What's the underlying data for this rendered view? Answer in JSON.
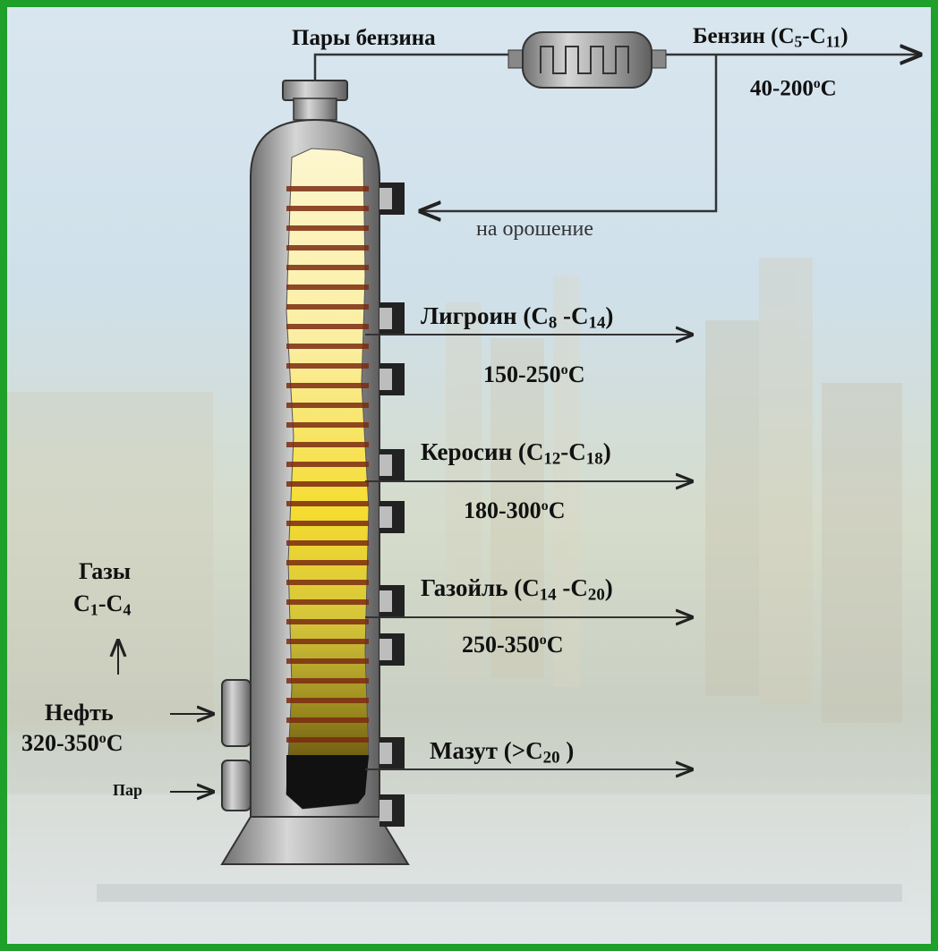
{
  "labels": {
    "vapors": "Пары бензина",
    "reflux": "на орошение",
    "gases_title": "Газы",
    "steam": "Пар"
  },
  "outputs": [
    {
      "name": "Бензин",
      "formula_open": "(C",
      "c_from": "5",
      "sep": "-C",
      "c_to": "11",
      "close": ")",
      "t_from": "40-200",
      "t_unit": "C"
    },
    {
      "name": "Лигроин",
      "formula_open": "(C",
      "c_from": "8",
      "sep": " -C",
      "c_to": "14",
      "close": ")",
      "t_from": "150-250",
      "t_unit": "C"
    },
    {
      "name": "Керосин",
      "formula_open": "(C",
      "c_from": "12",
      "sep": "-C",
      "c_to": "18",
      "close": ")",
      "t_from": "180-300",
      "t_unit": "C"
    },
    {
      "name": "Газойль",
      "formula_open": "(C",
      "c_from": "14",
      "sep": " -C",
      "c_to": "20",
      "close": ")",
      "t_from": "250-350",
      "t_unit": "C"
    },
    {
      "name": "Мазут",
      "formula_open": "(>C",
      "c_to": "20",
      "close": " )"
    }
  ],
  "gases": {
    "c": "C",
    "c_from": "1",
    "sep": "-C",
    "c_to": "4"
  },
  "feed": {
    "name": "Нефть",
    "t_from": "320-350",
    "t_unit": "C"
  },
  "degree_sign": "o",
  "colors": {
    "border": "#1fa02a",
    "column": "#9a9a9a",
    "oil_light": "#fbf1b4",
    "oil_dark": "#1a1208",
    "tray": "#7a2a10"
  }
}
